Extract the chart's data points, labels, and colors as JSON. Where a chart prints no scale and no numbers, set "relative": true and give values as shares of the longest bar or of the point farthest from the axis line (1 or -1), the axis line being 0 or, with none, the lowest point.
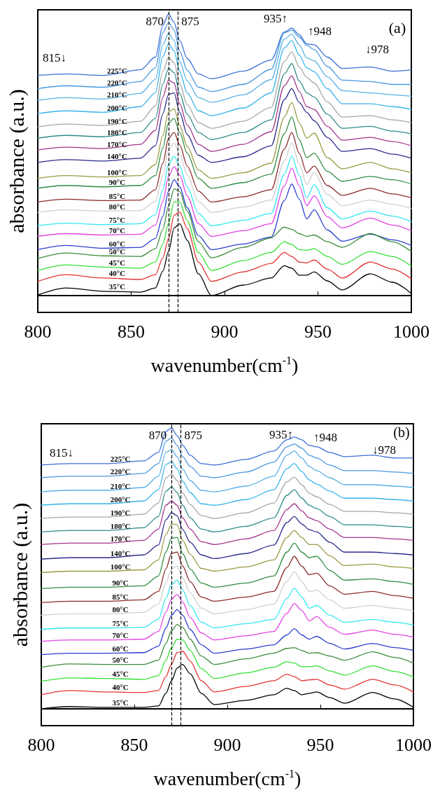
{
  "chart_data": [
    {
      "type": "line",
      "relative": true,
      "xlabel": "wavenumber(cm$^{-1}$)",
      "ylabel": "absorbance (a.u.)",
      "xlim": [
        800,
        1000
      ],
      "xticks": [
        800,
        850,
        900,
        950,
        1000
      ],
      "x": [
        800,
        815,
        835,
        855,
        863,
        867,
        870,
        873,
        876,
        880,
        886,
        893,
        910,
        925,
        932,
        936,
        940,
        944,
        948,
        955,
        963,
        978,
        990,
        1000
      ],
      "ref_lines": [
        {
          "axis": "x",
          "value": 870,
          "label": "870",
          "line_style": "dashed",
          "color": "#000000"
        },
        {
          "axis": "x",
          "value": 875,
          "label": "875",
          "line_style": "dashed",
          "color": "#000000"
        }
      ],
      "annotations": [
        "815↓",
        "935↑",
        "↑948",
        "↓978",
        "(a)"
      ],
      "series": [
        {
          "name": "225°C",
          "color": "#3a6fd8",
          "values": [
            0.782,
            0.787,
            0.782,
            0.802,
            0.847,
            0.96,
            1,
            0.97,
            0.906,
            0.842,
            0.787,
            0.77,
            0.797,
            0.837,
            0.936,
            0.95,
            0.926,
            0.894,
            0.891,
            0.847,
            0.807,
            0.812,
            0.797,
            0.802
          ]
        },
        {
          "name": "220°C",
          "color": "#4a98e0",
          "values": [
            0.735,
            0.745,
            0.74,
            0.76,
            0.809,
            0.933,
            0.97,
            0.943,
            0.869,
            0.8,
            0.74,
            0.725,
            0.75,
            0.804,
            0.933,
            0.943,
            0.918,
            0.889,
            0.874,
            0.814,
            0.765,
            0.76,
            0.75,
            0.75
          ]
        },
        {
          "name": "210°C",
          "color": "#5ab0e6",
          "values": [
            0.693,
            0.703,
            0.698,
            0.718,
            0.767,
            0.891,
            0.931,
            0.906,
            0.832,
            0.762,
            0.703,
            0.686,
            0.713,
            0.767,
            0.911,
            0.928,
            0.891,
            0.844,
            0.834,
            0.777,
            0.728,
            0.72,
            0.713,
            0.708
          ]
        },
        {
          "name": "200°C",
          "color": "#38b4ea",
          "values": [
            0.646,
            0.656,
            0.651,
            0.671,
            0.72,
            0.849,
            0.894,
            0.869,
            0.795,
            0.72,
            0.656,
            0.639,
            0.666,
            0.72,
            0.879,
            0.906,
            0.854,
            0.809,
            0.795,
            0.735,
            0.681,
            0.681,
            0.671,
            0.661
          ]
        },
        {
          "name": "190°C",
          "color": "#a6a6a6",
          "values": [
            0.599,
            0.609,
            0.604,
            0.619,
            0.673,
            0.797,
            0.847,
            0.827,
            0.752,
            0.678,
            0.614,
            0.594,
            0.619,
            0.668,
            0.832,
            0.866,
            0.812,
            0.775,
            0.755,
            0.688,
            0.634,
            0.639,
            0.624,
            0.614
          ]
        },
        {
          "name": "180°C",
          "color": "#2e8c88",
          "values": [
            0.559,
            0.569,
            0.564,
            0.579,
            0.629,
            0.752,
            0.807,
            0.792,
            0.718,
            0.644,
            0.579,
            0.554,
            0.579,
            0.624,
            0.787,
            0.824,
            0.762,
            0.72,
            0.705,
            0.644,
            0.594,
            0.601,
            0.584,
            0.574
          ]
        },
        {
          "name": "170°C",
          "color": "#a3338c",
          "values": [
            0.517,
            0.527,
            0.522,
            0.537,
            0.587,
            0.705,
            0.765,
            0.755,
            0.681,
            0.606,
            0.537,
            0.512,
            0.537,
            0.582,
            0.745,
            0.78,
            0.725,
            0.671,
            0.661,
            0.601,
            0.552,
            0.562,
            0.547,
            0.532
          ]
        },
        {
          "name": "140°C",
          "color": "#2b2b8c",
          "values": [
            0.473,
            0.483,
            0.478,
            0.488,
            0.532,
            0.646,
            0.715,
            0.72,
            0.651,
            0.572,
            0.498,
            0.473,
            0.493,
            0.532,
            0.696,
            0.735,
            0.686,
            0.651,
            0.621,
            0.562,
            0.512,
            0.522,
            0.502,
            0.488
          ]
        },
        {
          "name": "100°C",
          "color": "#9c9a44",
          "values": [
            0.416,
            0.426,
            0.421,
            0.426,
            0.465,
            0.569,
            0.653,
            0.663,
            0.604,
            0.53,
            0.446,
            0.416,
            0.436,
            0.47,
            0.634,
            0.686,
            0.614,
            0.559,
            0.577,
            0.49,
            0.45,
            0.473,
            0.45,
            0.436
          ]
        },
        {
          "name": "90°C",
          "color": "#2f8c40",
          "values": [
            0.381,
            0.391,
            0.386,
            0.391,
            0.426,
            0.525,
            0.614,
            0.629,
            0.579,
            0.505,
            0.416,
            0.381,
            0.401,
            0.431,
            0.574,
            0.634,
            0.554,
            0.49,
            0.505,
            0.441,
            0.406,
            0.423,
            0.411,
            0.396
          ]
        },
        {
          "name": "85°C",
          "color": "#8c2b2b",
          "values": [
            0.332,
            0.342,
            0.337,
            0.339,
            0.376,
            0.47,
            0.559,
            0.579,
            0.535,
            0.46,
            0.371,
            0.332,
            0.351,
            0.376,
            0.52,
            0.579,
            0.505,
            0.436,
            0.46,
            0.391,
            0.356,
            0.381,
            0.361,
            0.347
          ]
        },
        {
          "name": "80°C",
          "color": "#cfcfcf",
          "values": [
            0.295,
            0.304,
            0.3,
            0.302,
            0.334,
            0.428,
            0.517,
            0.542,
            0.502,
            0.428,
            0.334,
            0.295,
            0.314,
            0.339,
            0.478,
            0.542,
            0.468,
            0.394,
            0.438,
            0.359,
            0.319,
            0.339,
            0.324,
            0.309
          ]
        },
        {
          "name": "75°C",
          "color": "#33e6f2",
          "values": [
            0.248,
            0.257,
            0.252,
            0.255,
            0.287,
            0.376,
            0.465,
            0.495,
            0.46,
            0.386,
            0.292,
            0.248,
            0.267,
            0.292,
            0.431,
            0.495,
            0.426,
            0.347,
            0.394,
            0.312,
            0.272,
            0.3,
            0.282,
            0.262
          ]
        },
        {
          "name": "70°C",
          "color": "#e244e2",
          "values": [
            0.21,
            0.22,
            0.215,
            0.218,
            0.25,
            0.334,
            0.423,
            0.458,
            0.428,
            0.354,
            0.255,
            0.21,
            0.23,
            0.255,
            0.389,
            0.453,
            0.389,
            0.319,
            0.354,
            0.28,
            0.24,
            0.275,
            0.25,
            0.23
          ]
        },
        {
          "name": "60°C",
          "color": "#2b3fcf",
          "values": [
            0.163,
            0.178,
            0.168,
            0.171,
            0.203,
            0.282,
            0.371,
            0.411,
            0.386,
            0.312,
            0.213,
            0.163,
            0.183,
            0.208,
            0.337,
            0.396,
            0.342,
            0.272,
            0.304,
            0.233,
            0.193,
            0.218,
            0.198,
            0.178
          ]
        },
        {
          "name": "50°C",
          "color": "#3b8c3b",
          "values": [
            0.131,
            0.151,
            0.141,
            0.139,
            0.166,
            0.235,
            0.317,
            0.379,
            0.369,
            0.3,
            0.191,
            0.134,
            0.171,
            0.205,
            0.243,
            0.235,
            0.22,
            0.21,
            0.215,
            0.191,
            0.171,
            0.22,
            0.191,
            0.156
          ]
        },
        {
          "name": "45°C",
          "color": "#33e033",
          "values": [
            0.089,
            0.109,
            0.101,
            0.097,
            0.119,
            0.183,
            0.257,
            0.332,
            0.332,
            0.267,
            0.153,
            0.089,
            0.124,
            0.153,
            0.191,
            0.181,
            0.163,
            0.161,
            0.166,
            0.139,
            0.111,
            0.156,
            0.139,
            0.104
          ]
        },
        {
          "name": "40°C",
          "color": "#e23333",
          "values": [
            0.05,
            0.074,
            0.062,
            0.057,
            0.074,
            0.134,
            0.203,
            0.285,
            0.297,
            0.238,
            0.119,
            0.05,
            0.084,
            0.114,
            0.153,
            0.139,
            0.119,
            0.116,
            0.126,
            0.094,
            0.062,
            0.119,
            0.094,
            0.059
          ]
        },
        {
          "name": "35°C",
          "color": "#000000",
          "values": [
            0.002,
            0.027,
            0.015,
            0.012,
            0.027,
            0.087,
            0.156,
            0.24,
            0.255,
            0.196,
            0.077,
            0,
            0.037,
            0.062,
            0.106,
            0.097,
            0.072,
            0.072,
            0.084,
            0.052,
            0.02,
            0.077,
            0.047,
            0.007
          ]
        }
      ]
    },
    {
      "type": "line",
      "relative": true,
      "xlabel": "wavenumber(cm$^{-1}$)",
      "ylabel": "absorbance (a.u.)",
      "xlim": [
        800,
        1000
      ],
      "xticks": [
        800,
        850,
        900,
        950,
        1000
      ],
      "x": [
        800,
        815,
        835,
        855,
        863,
        867,
        870,
        873,
        876,
        880,
        886,
        893,
        910,
        925,
        932,
        936,
        940,
        944,
        948,
        955,
        963,
        978,
        990,
        1000
      ],
      "ref_lines": [
        {
          "axis": "x",
          "value": 870,
          "label": "870",
          "line_style": "dashed",
          "color": "#000000"
        },
        {
          "axis": "x",
          "value": 875,
          "label": "875",
          "line_style": "dashed",
          "color": "#000000"
        }
      ],
      "annotations": [
        "815↓",
        "935↑",
        "↑948",
        "↓978",
        "(b)"
      ],
      "series": [
        {
          "name": "225°C",
          "color": "#3a6fd8",
          "values": [
            0.868,
            0.873,
            0.873,
            0.883,
            0.913,
            0.988,
            1,
            0.973,
            0.938,
            0.903,
            0.873,
            0.868,
            0.888,
            0.918,
            0.958,
            0.968,
            0.958,
            0.938,
            0.933,
            0.913,
            0.898,
            0.903,
            0.893,
            0.893
          ]
        },
        {
          "name": "220°C",
          "color": "#4a98e0",
          "values": [
            0.823,
            0.828,
            0.828,
            0.838,
            0.873,
            0.953,
            0.965,
            0.938,
            0.898,
            0.863,
            0.828,
            0.823,
            0.843,
            0.878,
            0.933,
            0.943,
            0.928,
            0.903,
            0.893,
            0.868,
            0.848,
            0.848,
            0.843,
            0.838
          ]
        },
        {
          "name": "210°C",
          "color": "#5ab0e6",
          "values": [
            0.773,
            0.778,
            0.778,
            0.788,
            0.828,
            0.913,
            0.923,
            0.898,
            0.853,
            0.813,
            0.778,
            0.773,
            0.793,
            0.828,
            0.903,
            0.918,
            0.893,
            0.863,
            0.848,
            0.823,
            0.798,
            0.798,
            0.793,
            0.788
          ]
        },
        {
          "name": "200°C",
          "color": "#38b4ea",
          "values": [
            0.725,
            0.73,
            0.73,
            0.74,
            0.78,
            0.87,
            0.88,
            0.855,
            0.81,
            0.77,
            0.73,
            0.725,
            0.745,
            0.78,
            0.855,
            0.873,
            0.845,
            0.815,
            0.8,
            0.775,
            0.75,
            0.75,
            0.745,
            0.74
          ]
        },
        {
          "name": "190°C",
          "color": "#a6a6a6",
          "values": [
            0.678,
            0.683,
            0.683,
            0.693,
            0.733,
            0.823,
            0.835,
            0.813,
            0.768,
            0.728,
            0.688,
            0.678,
            0.698,
            0.733,
            0.808,
            0.825,
            0.798,
            0.768,
            0.755,
            0.728,
            0.703,
            0.703,
            0.698,
            0.693
          ]
        },
        {
          "name": "180°C",
          "color": "#2e8c88",
          "values": [
            0.63,
            0.635,
            0.635,
            0.645,
            0.685,
            0.775,
            0.79,
            0.77,
            0.725,
            0.68,
            0.64,
            0.63,
            0.65,
            0.68,
            0.76,
            0.78,
            0.75,
            0.725,
            0.713,
            0.685,
            0.655,
            0.655,
            0.65,
            0.645
          ]
        },
        {
          "name": "170°C",
          "color": "#a3338c",
          "values": [
            0.585,
            0.59,
            0.59,
            0.6,
            0.64,
            0.725,
            0.74,
            0.725,
            0.68,
            0.64,
            0.595,
            0.585,
            0.605,
            0.635,
            0.71,
            0.73,
            0.705,
            0.68,
            0.67,
            0.64,
            0.61,
            0.61,
            0.605,
            0.6
          ]
        },
        {
          "name": "140°C",
          "color": "#2b2b8c",
          "values": [
            0.533,
            0.538,
            0.538,
            0.548,
            0.583,
            0.673,
            0.698,
            0.688,
            0.638,
            0.593,
            0.548,
            0.535,
            0.553,
            0.583,
            0.663,
            0.685,
            0.658,
            0.638,
            0.63,
            0.593,
            0.558,
            0.558,
            0.553,
            0.548
          ]
        },
        {
          "name": "100°C",
          "color": "#9c9a44",
          "values": [
            0.485,
            0.49,
            0.49,
            0.495,
            0.53,
            0.62,
            0.658,
            0.655,
            0.6,
            0.55,
            0.5,
            0.49,
            0.505,
            0.53,
            0.61,
            0.635,
            0.61,
            0.585,
            0.585,
            0.545,
            0.51,
            0.515,
            0.505,
            0.5
          ]
        },
        {
          "name": "90°C",
          "color": "#2f8c40",
          "values": [
            0.428,
            0.433,
            0.433,
            0.438,
            0.473,
            0.558,
            0.608,
            0.61,
            0.553,
            0.498,
            0.448,
            0.433,
            0.448,
            0.473,
            0.558,
            0.59,
            0.558,
            0.538,
            0.543,
            0.493,
            0.458,
            0.463,
            0.453,
            0.443
          ]
        },
        {
          "name": "85°C",
          "color": "#8c2b2b",
          "values": [
            0.378,
            0.383,
            0.383,
            0.388,
            0.418,
            0.498,
            0.553,
            0.558,
            0.508,
            0.453,
            0.398,
            0.383,
            0.398,
            0.418,
            0.503,
            0.543,
            0.508,
            0.478,
            0.483,
            0.438,
            0.408,
            0.418,
            0.403,
            0.393
          ]
        },
        {
          "name": "80°C",
          "color": "#cfcfcf",
          "values": [
            0.333,
            0.338,
            0.338,
            0.343,
            0.373,
            0.448,
            0.498,
            0.508,
            0.468,
            0.413,
            0.358,
            0.338,
            0.353,
            0.373,
            0.453,
            0.488,
            0.453,
            0.418,
            0.423,
            0.388,
            0.358,
            0.368,
            0.358,
            0.348
          ]
        },
        {
          "name": "75°C",
          "color": "#33e6f2",
          "values": [
            0.283,
            0.288,
            0.288,
            0.29,
            0.318,
            0.393,
            0.443,
            0.458,
            0.423,
            0.368,
            0.308,
            0.288,
            0.303,
            0.318,
            0.393,
            0.43,
            0.398,
            0.358,
            0.368,
            0.333,
            0.308,
            0.318,
            0.308,
            0.298
          ]
        },
        {
          "name": "70°C",
          "color": "#e244e2",
          "values": [
            0.24,
            0.245,
            0.245,
            0.248,
            0.275,
            0.345,
            0.39,
            0.408,
            0.38,
            0.325,
            0.27,
            0.245,
            0.26,
            0.275,
            0.34,
            0.375,
            0.35,
            0.313,
            0.328,
            0.29,
            0.265,
            0.28,
            0.265,
            0.255
          ]
        },
        {
          "name": "60°C",
          "color": "#2b3fcf",
          "values": [
            0.193,
            0.198,
            0.198,
            0.2,
            0.223,
            0.288,
            0.333,
            0.353,
            0.333,
            0.283,
            0.228,
            0.198,
            0.213,
            0.228,
            0.263,
            0.285,
            0.263,
            0.248,
            0.258,
            0.233,
            0.213,
            0.233,
            0.218,
            0.208
          ]
        },
        {
          "name": "50°C",
          "color": "#3b8c3b",
          "values": [
            0.148,
            0.16,
            0.158,
            0.158,
            0.173,
            0.233,
            0.278,
            0.3,
            0.29,
            0.248,
            0.188,
            0.158,
            0.178,
            0.198,
            0.215,
            0.218,
            0.208,
            0.198,
            0.2,
            0.188,
            0.173,
            0.203,
            0.183,
            0.163
          ]
        },
        {
          "name": "45°C",
          "color": "#33e033",
          "values": [
            0.098,
            0.11,
            0.108,
            0.105,
            0.118,
            0.173,
            0.218,
            0.248,
            0.245,
            0.208,
            0.143,
            0.108,
            0.128,
            0.148,
            0.168,
            0.163,
            0.15,
            0.15,
            0.153,
            0.135,
            0.12,
            0.153,
            0.133,
            0.113
          ]
        },
        {
          "name": "40°C",
          "color": "#e23333",
          "values": [
            0.05,
            0.065,
            0.06,
            0.058,
            0.065,
            0.115,
            0.16,
            0.2,
            0.205,
            0.17,
            0.1,
            0.06,
            0.08,
            0.1,
            0.123,
            0.115,
            0.1,
            0.103,
            0.105,
            0.085,
            0.07,
            0.105,
            0.085,
            0.06
          ]
        },
        {
          "name": "35°C",
          "color": "#000000",
          "values": [
            0,
            0.008,
            0.005,
            0.005,
            0.01,
            0.055,
            0.1,
            0.145,
            0.158,
            0.125,
            0.055,
            0.015,
            0.03,
            0.05,
            0.073,
            0.065,
            0.05,
            0.055,
            0.06,
            0.04,
            0.02,
            0.058,
            0.035,
            0.005
          ]
        }
      ]
    }
  ]
}
